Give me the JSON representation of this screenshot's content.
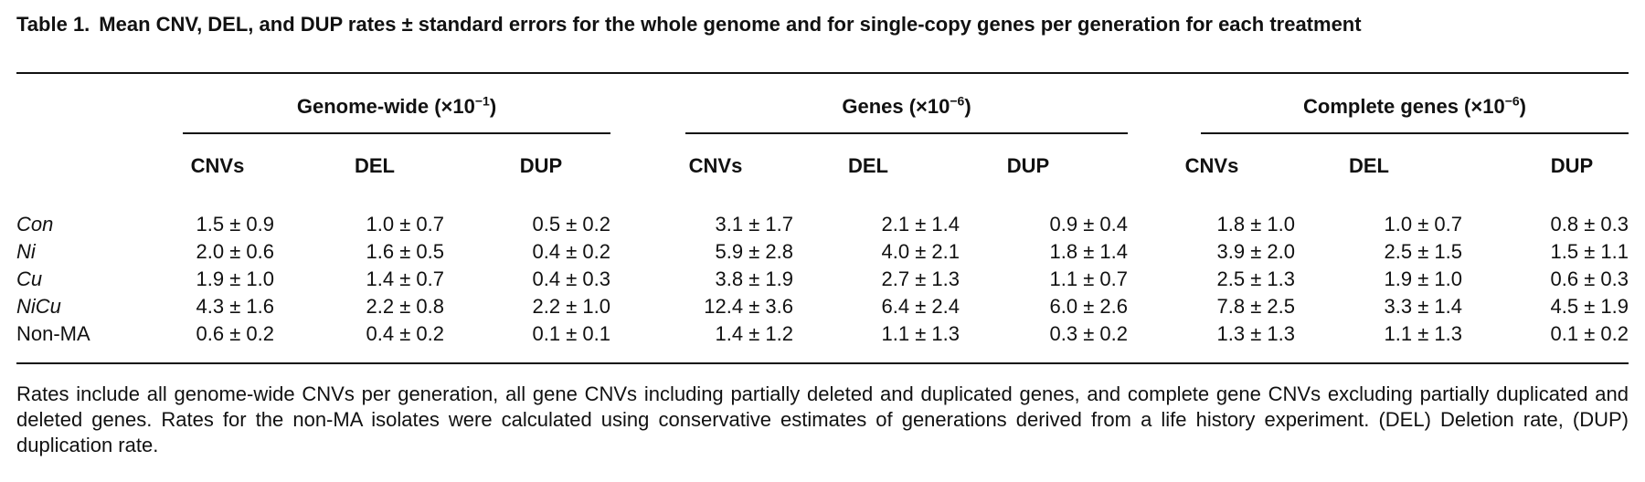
{
  "caption": {
    "label": "Table 1.",
    "title": "Mean CNV, DEL, and DUP rates ± standard errors for the whole genome and for single-copy genes per generation for each treatment"
  },
  "groups": [
    {
      "name": "Genome-wide (×10",
      "exp": "−1",
      "close": ")"
    },
    {
      "name": "Genes (×10",
      "exp": "−6",
      "close": ")"
    },
    {
      "name": "Complete genes (×10",
      "exp": "−6",
      "close": ")"
    }
  ],
  "columns": [
    "CNVs",
    "DEL",
    "DUP",
    "CNVs",
    "DEL",
    "DUP",
    "CNVs",
    "DEL",
    "DUP"
  ],
  "rows": [
    {
      "label": "Con",
      "italic": true,
      "values": [
        "1.5 ± 0.9",
        "1.0 ± 0.7",
        "0.5 ± 0.2",
        "3.1 ± 1.7",
        "2.1 ± 1.4",
        "0.9 ± 0.4",
        "1.8 ± 1.0",
        "1.0 ± 0.7",
        "0.8 ± 0.3"
      ]
    },
    {
      "label": "Ni",
      "italic": true,
      "values": [
        "2.0 ± 0.6",
        "1.6 ± 0.5",
        "0.4 ± 0.2",
        "5.9 ± 2.8",
        "4.0 ± 2.1",
        "1.8 ± 1.4",
        "3.9 ± 2.0",
        "2.5 ± 1.5",
        "1.5 ± 1.1"
      ]
    },
    {
      "label": "Cu",
      "italic": true,
      "values": [
        "1.9 ± 1.0",
        "1.4 ± 0.7",
        "0.4 ± 0.3",
        "3.8 ± 1.9",
        "2.7 ± 1.3",
        "1.1 ± 0.7",
        "2.5 ± 1.3",
        "1.9 ± 1.0",
        "0.6 ± 0.3"
      ]
    },
    {
      "label": "NiCu",
      "italic": true,
      "values": [
        "4.3 ± 1.6",
        "2.2 ± 0.8",
        "2.2 ± 1.0",
        "12.4 ± 3.6",
        "6.4 ± 2.4",
        "6.0 ± 2.6",
        "7.8 ± 2.5",
        "3.3 ± 1.4",
        "4.5 ± 1.9"
      ]
    },
    {
      "label": "Non-MA",
      "italic": false,
      "values": [
        "0.6 ± 0.2",
        "0.4 ± 0.2",
        "0.1 ± 0.1",
        "1.4 ± 1.2",
        "1.1 ± 1.3",
        "0.3 ± 0.2",
        "1.3 ± 1.3",
        "1.1 ± 1.3",
        "0.1 ± 0.2"
      ]
    }
  ],
  "footnote": "Rates include all genome-wide CNVs per generation, all gene CNVs including partially deleted and duplicated genes, and complete gene CNVs excluding partially duplicated and deleted genes. Rates for the non-MA isolates were calculated using conservative estimates of generations derived from a life history experiment. (DEL) Deletion rate, (DUP) duplication rate."
}
